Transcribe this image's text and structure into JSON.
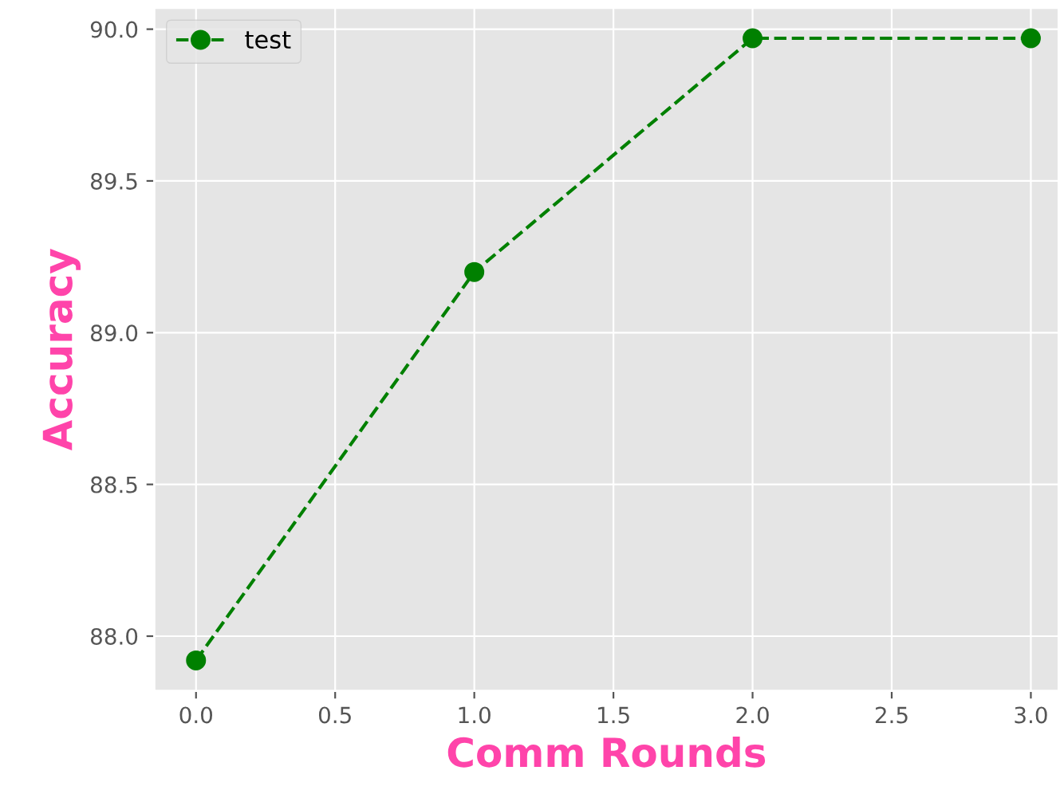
{
  "chart_data": {
    "type": "line",
    "xlabel": "Comm Rounds",
    "ylabel": "Accuracy",
    "x": [
      0,
      1,
      2,
      3
    ],
    "series": [
      {
        "name": "test",
        "color": "#008000",
        "values": [
          87.92,
          89.2,
          89.97,
          89.97
        ]
      }
    ],
    "xlim": [
      -0.15,
      3.1
    ],
    "xticks": [
      {
        "value": 0,
        "label": "0.0"
      },
      {
        "value": 0.5,
        "label": "0.5"
      },
      {
        "value": 1,
        "label": "1.0"
      },
      {
        "value": 1.5,
        "label": "1.5"
      },
      {
        "value": 2,
        "label": "2.0"
      },
      {
        "value": 2.5,
        "label": "2.5"
      },
      {
        "value": 3,
        "label": "3.0"
      }
    ],
    "ylim": [
      87.82,
      90.07
    ],
    "yticks": [
      {
        "value": 88,
        "label": "88.0"
      },
      {
        "value": 88.5,
        "label": "88.5"
      },
      {
        "value": 89,
        "label": "89.0"
      },
      {
        "value": 89.5,
        "label": "89.5"
      },
      {
        "value": 90,
        "label": "90.0"
      }
    ],
    "grid": true,
    "legend": "top left",
    "marker": "circle",
    "line_style": "dashed"
  }
}
